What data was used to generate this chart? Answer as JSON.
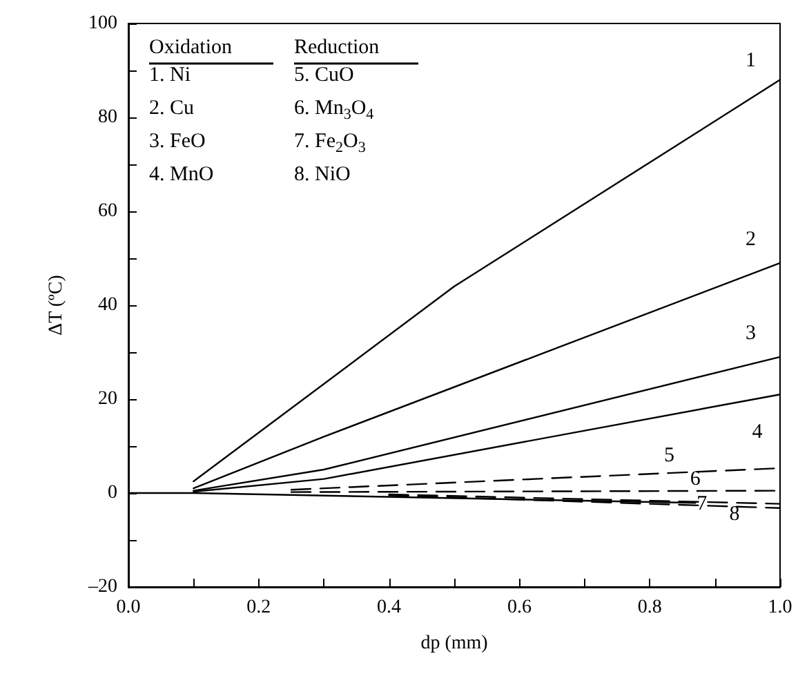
{
  "chart_data": {
    "type": "line",
    "xlabel": "dp (mm)",
    "ylabel": "ΔT (ºC)",
    "xlim": [
      0,
      1
    ],
    "xticks": [
      {
        "value": 0,
        "label": "0.0"
      },
      {
        "value": 0.2,
        "label": "0.2"
      },
      {
        "value": 0.4,
        "label": "0.4"
      },
      {
        "value": 0.6,
        "label": "0.6"
      },
      {
        "value": 0.8,
        "label": "0.8"
      },
      {
        "value": 1,
        "label": "1.0"
      }
    ],
    "ylim": [
      -20,
      100
    ],
    "yticks": [
      {
        "value": -20,
        "label": "–20"
      },
      0,
      20,
      40,
      60,
      80,
      100
    ],
    "grid": false,
    "marker": "none",
    "line_style": "solid",
    "series": [
      {
        "color": "#000000",
        "x": [
          0,
          0.1,
          0.87
        ],
        "values": [
          0,
          0,
          -2.1
        ]
      },
      {
        "color": "#000000",
        "x": [
          0.1,
          0.5,
          1.0
        ],
        "values": [
          2.5,
          44,
          88
        ]
      },
      {
        "color": "#000000",
        "x": [
          0.1,
          0.3,
          1.0
        ],
        "values": [
          1,
          12,
          49
        ]
      },
      {
        "color": "#000000",
        "x": [
          0.1,
          0.3,
          1.0
        ],
        "values": [
          0.5,
          5,
          29
        ]
      },
      {
        "color": "#000000",
        "x": [
          0.1,
          0.3,
          1.0
        ],
        "values": [
          0.3,
          3,
          21
        ]
      },
      {
        "color": "#000000",
        "line_style": "dashed",
        "x": [
          0.25,
          1.0
        ],
        "values": [
          0.7,
          5.3
        ]
      },
      {
        "color": "#000000",
        "line_style": "dashed",
        "x": [
          0.25,
          1.0
        ],
        "values": [
          0.2,
          0.5
        ]
      },
      {
        "color": "#000000",
        "line_style": "dashed",
        "x": [
          0.4,
          1.0
        ],
        "values": [
          -0.3,
          -2.3
        ]
      },
      {
        "color": "#000000",
        "line_style": "dashed",
        "x": [
          0.4,
          1.0
        ],
        "values": [
          -0.5,
          -3.2
        ]
      }
    ],
    "annotations": [
      "Oxidation",
      "1. Ni",
      "2. Cu",
      "3. FeO",
      "4. MnO",
      "Reduction",
      "5. CuO",
      "6. Mn$_{3}$O$_{4}$",
      "7. Fe$_{2}$O$_{3}$",
      "8. NiO",
      {
        "text": "1",
        "x": 0.955,
        "y": 92
      },
      {
        "text": "2",
        "x": 0.955,
        "y": 54
      },
      {
        "text": "3",
        "x": 0.955,
        "y": 34
      },
      {
        "text": "4",
        "x": 0.965,
        "y": 13
      },
      {
        "text": "5",
        "x": 0.83,
        "y": 8
      },
      {
        "text": "6",
        "x": 0.87,
        "y": 3
      },
      {
        "text": "7",
        "x": 0.88,
        "y": -2.4
      },
      {
        "text": "8",
        "x": 0.93,
        "y": -4.5
      }
    ]
  }
}
